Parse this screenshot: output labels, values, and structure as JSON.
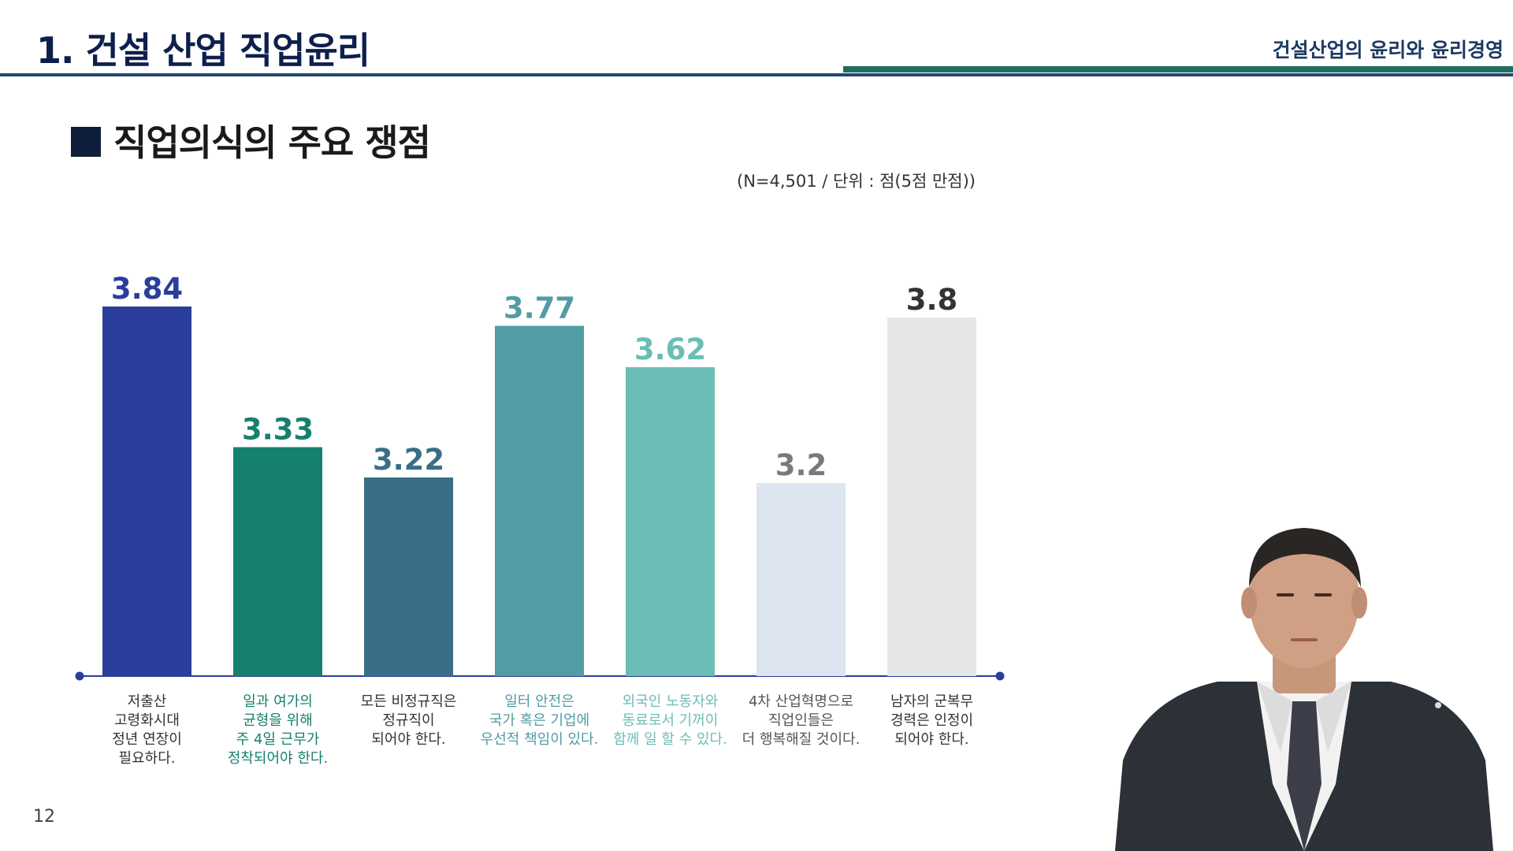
{
  "header": {
    "title": "1. 건설 산업 직업윤리",
    "subtitle": "건설산업의 윤리와 윤리경영"
  },
  "section": {
    "heading": "직업의식의 주요 쟁점"
  },
  "note": "(N=4,501 / 단위 : 점(5점 만점))",
  "page_number": "12",
  "colors": {
    "title": "#0e1f4d",
    "rule_blue": "#23476e",
    "rule_green": "#1f6e62"
  },
  "chart_data": {
    "type": "bar",
    "categories": [
      "저출산\n고령화시대\n정년 연장이\n필요하다.",
      "일과 여가의\n균형을 위해\n주 4일 근무가\n정착되어야 한다.",
      "모든 비정규직은\n정규직이\n되어야 한다.",
      "일터 안전은\n국가 혹은 기업에\n우선적 책임이 있다.",
      "외국인 노동자와\n동료로서 기꺼이\n함께 일 할 수 있다.",
      "4차 산업혁명으로\n직업인들은\n더 행복해질 것이다.",
      "남자의 군복무\n경력은 인정이\n되어야 한다."
    ],
    "values": [
      3.84,
      3.33,
      3.22,
      3.77,
      3.62,
      3.2,
      3.8
    ],
    "value_labels": [
      "3.84",
      "3.33",
      "3.22",
      "3.77",
      "3.62",
      "3.2",
      "3.8"
    ],
    "bar_colors": [
      "#2b3e9c",
      "#16806e",
      "#3a6e87",
      "#529ca4",
      "#6bbdb5",
      "#dce5f0",
      "#e6e6e6"
    ],
    "label_colors": [
      "#2b3e9c",
      "#16806e",
      "#3a6e87",
      "#529ca4",
      "#6bbdb5",
      "#7a7a7a",
      "#333333"
    ],
    "category_colors": [
      "#333333",
      "#16806e",
      "#333333",
      "#529ca4",
      "#6bbdb5",
      "#555555",
      "#333333"
    ],
    "ylim": [
      2.5,
      4.0
    ],
    "grid": false,
    "title": "",
    "xlabel": "",
    "ylabel": ""
  }
}
